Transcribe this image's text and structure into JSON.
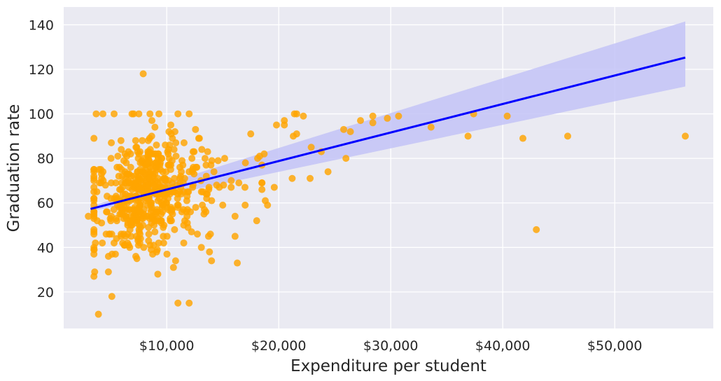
{
  "chart_data": {
    "type": "scatter",
    "title": "",
    "xlabel": "Expenditure per student",
    "ylabel": "Graduation rate",
    "xlim": [
      800,
      58800
    ],
    "ylim": [
      3.6,
      148
    ],
    "grid": true,
    "x_tick_values": [
      10000,
      20000,
      30000,
      40000,
      50000
    ],
    "x_tick_labels": [
      "$10,000",
      "$20,000",
      "$30,000",
      "$40,000",
      "$50,000"
    ],
    "y_tick_values": [
      20,
      40,
      60,
      80,
      100,
      120,
      140
    ],
    "y_tick_labels": [
      "20",
      "40",
      "60",
      "80",
      "100",
      "120",
      "140"
    ],
    "colors": {
      "background": "#eaeaf2",
      "grid": "#ffffff",
      "points": "#ffa500",
      "regression_line": "#0000ff",
      "confidence_band": "#c3c3f7"
    },
    "regression": {
      "x": [
        3200,
        56300
      ],
      "y": [
        57.3,
        125.3
      ],
      "ci_upper": [
        58.4,
        141.5
      ],
      "ci_lower": [
        56.2,
        112.3
      ]
    },
    "outliers": [
      {
        "x": 3900,
        "y": 10
      },
      {
        "x": 3700,
        "y": 100
      },
      {
        "x": 4300,
        "y": 100
      },
      {
        "x": 5300,
        "y": 100
      },
      {
        "x": 7900,
        "y": 118
      },
      {
        "x": 11000,
        "y": 15
      },
      {
        "x": 12000,
        "y": 15
      },
      {
        "x": 16300,
        "y": 33
      },
      {
        "x": 14000,
        "y": 34
      },
      {
        "x": 10600,
        "y": 31
      },
      {
        "x": 5100,
        "y": 18
      },
      {
        "x": 17000,
        "y": 59
      },
      {
        "x": 18800,
        "y": 61
      },
      {
        "x": 19600,
        "y": 67
      },
      {
        "x": 21200,
        "y": 71
      },
      {
        "x": 22800,
        "y": 71
      },
      {
        "x": 24400,
        "y": 74
      },
      {
        "x": 26000,
        "y": 80
      },
      {
        "x": 22900,
        "y": 85
      },
      {
        "x": 23800,
        "y": 83
      },
      {
        "x": 25800,
        "y": 93
      },
      {
        "x": 26400,
        "y": 92
      },
      {
        "x": 27300,
        "y": 97
      },
      {
        "x": 28400,
        "y": 96
      },
      {
        "x": 28400,
        "y": 99
      },
      {
        "x": 29700,
        "y": 98
      },
      {
        "x": 30700,
        "y": 99
      },
      {
        "x": 33600,
        "y": 94
      },
      {
        "x": 36900,
        "y": 90
      },
      {
        "x": 37400,
        "y": 100
      },
      {
        "x": 40400,
        "y": 99
      },
      {
        "x": 41800,
        "y": 89
      },
      {
        "x": 43000,
        "y": 48
      },
      {
        "x": 45800,
        "y": 90
      },
      {
        "x": 56300,
        "y": 90
      },
      {
        "x": 21400,
        "y": 100
      },
      {
        "x": 21600,
        "y": 100
      },
      {
        "x": 22200,
        "y": 99
      },
      {
        "x": 20500,
        "y": 97
      },
      {
        "x": 20500,
        "y": 95
      },
      {
        "x": 19800,
        "y": 95
      },
      {
        "x": 21300,
        "y": 90
      },
      {
        "x": 21600,
        "y": 91
      },
      {
        "x": 11000,
        "y": 100
      },
      {
        "x": 12000,
        "y": 100
      },
      {
        "x": 6900,
        "y": 100
      },
      {
        "x": 8500,
        "y": 100
      },
      {
        "x": 3000,
        "y": 54
      },
      {
        "x": 13900,
        "y": 46
      },
      {
        "x": 16100,
        "y": 45
      },
      {
        "x": 15000,
        "y": 59
      },
      {
        "x": 18300,
        "y": 81
      },
      {
        "x": 18700,
        "y": 82
      },
      {
        "x": 17500,
        "y": 91
      },
      {
        "x": 19000,
        "y": 59
      }
    ],
    "main_cluster": {
      "n": 560,
      "x_range": [
        3500,
        18500
      ],
      "x_mode": 8000,
      "y_mean": 64,
      "y_sd": 13,
      "y_range": [
        20,
        100
      ]
    }
  }
}
